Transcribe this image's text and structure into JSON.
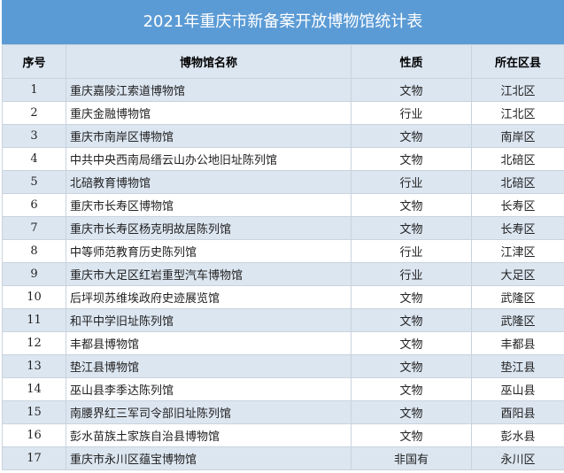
{
  "title": "2021年重庆市新备案开放博物馆统计表",
  "headers": [
    "序号",
    "博物馆名称",
    "性质",
    "所在区县"
  ],
  "rows": [
    [
      "1",
      "重庆嘉陵江索道博物馆",
      "文物",
      "江北区"
    ],
    [
      "2",
      "重庆金融博物馆",
      "行业",
      "江北区"
    ],
    [
      "3",
      "重庆市南岸区博物馆",
      "文物",
      "南岸区"
    ],
    [
      "4",
      "中共中央西南局缙云山办公地旧址陈列馆",
      "文物",
      "北碚区"
    ],
    [
      "5",
      "北碚教育博物馆",
      "行业",
      "北碚区"
    ],
    [
      "6",
      "重庆市长寿区博物馆",
      "文物",
      "长寿区"
    ],
    [
      "7",
      "重庆市长寿区杨克明故居陈列馆",
      "文物",
      "长寿区"
    ],
    [
      "8",
      "中等师范教育历史陈列馆",
      "行业",
      "江津区"
    ],
    [
      "9",
      "重庆市大足区红岩重型汽车博物馆",
      "行业",
      "大足区"
    ],
    [
      "10",
      "后坪坝苏维埃政府史迹展览馆",
      "文物",
      "武隆区"
    ],
    [
      "11",
      "和平中学旧址陈列馆",
      "文物",
      "武隆区"
    ],
    [
      "12",
      "丰都县博物馆",
      "文物",
      "丰都县"
    ],
    [
      "13",
      "垫江县博物馆",
      "文物",
      "垫江县"
    ],
    [
      "14",
      "巫山县李季达陈列馆",
      "文物",
      "巫山县"
    ],
    [
      "15",
      "南腰界红三军司令部旧址陈列馆",
      "文物",
      "酉阳县"
    ],
    [
      "16",
      "彭水苗族土家族自治县博物馆",
      "文物",
      "彭水县"
    ],
    [
      "17",
      "重庆市永川区蕴宝博物馆",
      "非国有",
      "永川区"
    ]
  ]
}
